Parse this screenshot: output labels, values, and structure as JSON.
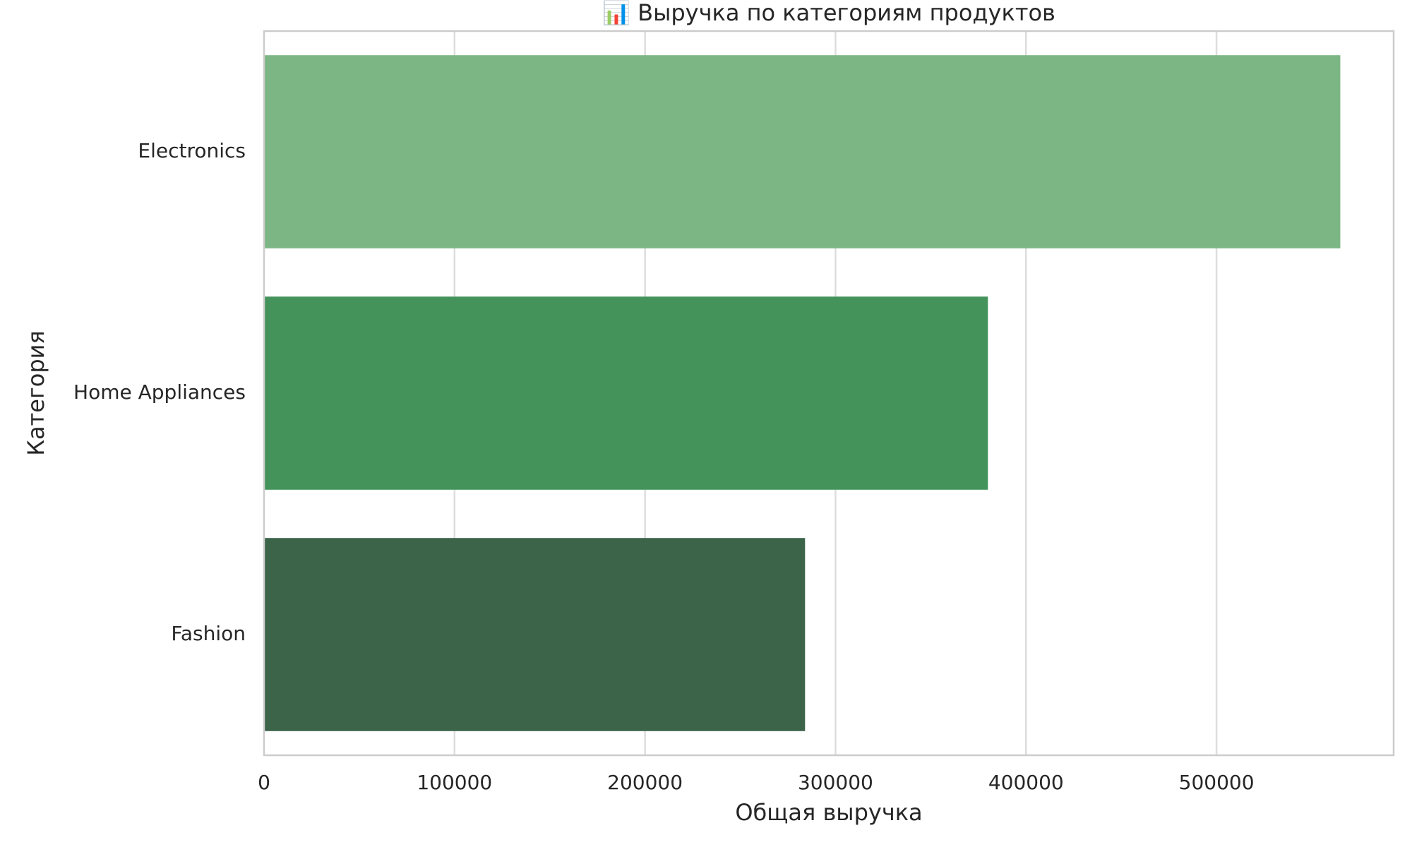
{
  "chart_data": {
    "type": "bar",
    "orientation": "horizontal",
    "title": "📊 Выручка по категориям продуктов",
    "xlabel": "Общая выручка",
    "ylabel": "Категория",
    "categories": [
      "Electronics",
      "Home Appliances",
      "Fashion"
    ],
    "values": [
      565000,
      380000,
      284000
    ],
    "colors": [
      "#7db685",
      "#44935b",
      "#3b6449"
    ],
    "xlim": [
      0,
      593000
    ],
    "xticks": [
      0,
      100000,
      200000,
      300000,
      400000,
      500000
    ],
    "xtick_labels": [
      "0",
      "100000",
      "200000",
      "300000",
      "400000",
      "500000"
    ],
    "grid": true,
    "grid_axis": "x",
    "legend": false
  }
}
